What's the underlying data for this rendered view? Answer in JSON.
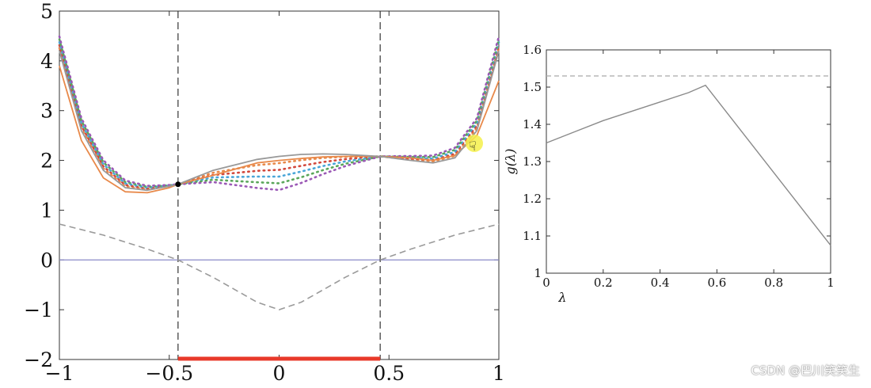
{
  "chart_data": [
    {
      "type": "line",
      "xlim": [
        -1,
        1
      ],
      "ylim": [
        -2,
        5
      ],
      "xticks": [
        "−1",
        "−0.5",
        "0",
        "0.5",
        "1"
      ],
      "xtick_values": [
        -1,
        -0.5,
        0,
        0.5,
        1
      ],
      "yticks": [
        "−2",
        "−1",
        "0",
        "1",
        "2",
        "3",
        "4",
        "5"
      ],
      "ytick_values": [
        -2,
        -1,
        0,
        1,
        2,
        3,
        4,
        5
      ],
      "xlabel": "",
      "ylabel": "",
      "grid": false,
      "colors": {
        "objective": "#999999",
        "dual_lower": "#e8894a",
        "constraint": "#9a9a9a",
        "zero_line": "#8a8ac8",
        "feasible": "#e8392a",
        "dotted": [
          "#e8894a",
          "#d2483c",
          "#4aa6d8",
          "#5aa65a",
          "#9b59b6"
        ]
      },
      "boundaries_x": [
        -0.46,
        0.46
      ],
      "feasible_interval": [
        -0.46,
        0.46
      ],
      "optimum": {
        "x": -0.46,
        "y": 1.52
      },
      "series": [
        {
          "style": "solid-gray",
          "x": [
            -1,
            -0.9,
            -0.8,
            -0.7,
            -0.6,
            -0.5,
            -0.46,
            -0.3,
            -0.1,
            0,
            0.1,
            0.2,
            0.3,
            0.46,
            0.6,
            0.7,
            0.8,
            0.9,
            1
          ],
          "y": [
            4.2,
            2.6,
            1.8,
            1.45,
            1.4,
            1.48,
            1.52,
            1.8,
            2.02,
            2.08,
            2.12,
            2.13,
            2.12,
            2.08,
            2.0,
            1.95,
            2.05,
            2.6,
            4.2
          ]
        },
        {
          "style": "solid-orange",
          "x": [
            -1,
            -0.9,
            -0.8,
            -0.7,
            -0.6,
            -0.5,
            -0.46,
            -0.3,
            -0.1,
            0,
            0.1,
            0.2,
            0.3,
            0.46,
            0.6,
            0.7,
            0.8,
            0.9,
            1
          ],
          "y": [
            3.9,
            2.4,
            1.65,
            1.37,
            1.35,
            1.45,
            1.52,
            1.7,
            1.95,
            2.0,
            2.04,
            2.07,
            2.08,
            2.08,
            2.05,
            2.0,
            2.1,
            2.5,
            3.6
          ]
        },
        {
          "style": "dashed-gray",
          "x": [
            -1,
            -0.8,
            -0.6,
            -0.46,
            -0.3,
            -0.1,
            0,
            0.1,
            0.3,
            0.46,
            0.6,
            0.8,
            1
          ],
          "y": [
            0.72,
            0.5,
            0.22,
            0.0,
            -0.35,
            -0.85,
            -1.0,
            -0.85,
            -0.35,
            0.0,
            0.22,
            0.5,
            0.72
          ]
        },
        {
          "style": "zero-line",
          "x": [
            -1,
            1
          ],
          "y": [
            0,
            0
          ]
        }
      ]
    },
    {
      "type": "line",
      "xlim": [
        0,
        1
      ],
      "ylim": [
        1,
        1.6
      ],
      "xticks": [
        "0",
        "0.2",
        "0.4",
        "0.6",
        "0.8",
        "1"
      ],
      "xtick_values": [
        0,
        0.2,
        0.4,
        0.6,
        0.8,
        1
      ],
      "yticks": [
        "1",
        "1.1",
        "1.2",
        "1.3",
        "1.4",
        "1.5",
        "1.6"
      ],
      "ytick_values": [
        1,
        1.1,
        1.2,
        1.3,
        1.4,
        1.5,
        1.6
      ],
      "xlabel": "λ",
      "ylabel": "g(λ)",
      "grid": false,
      "series": [
        {
          "style": "solid-gray",
          "x": [
            0,
            0.1,
            0.2,
            0.3,
            0.4,
            0.5,
            0.56,
            1
          ],
          "y": [
            1.35,
            1.38,
            1.41,
            1.435,
            1.46,
            1.485,
            1.505,
            1.075
          ]
        },
        {
          "style": "dashed-light",
          "x": [
            0,
            1
          ],
          "y": [
            1.53,
            1.53
          ]
        }
      ]
    }
  ],
  "watermark": "CSDN @巴川笑笑生"
}
